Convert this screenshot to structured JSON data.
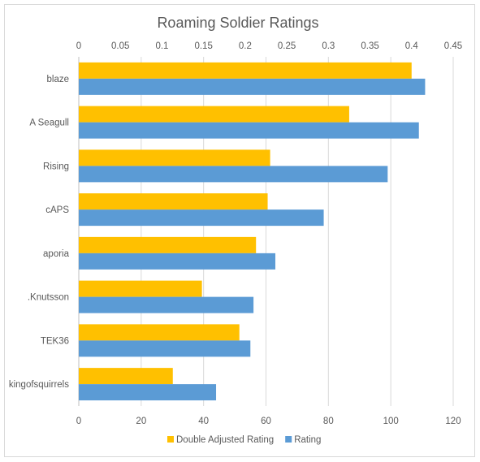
{
  "chart_data": {
    "type": "bar",
    "orientation": "horizontal",
    "title": "Roaming Soldier Ratings",
    "categories": [
      "blaze",
      "A Seagull",
      "Rising",
      "cAPS",
      "aporia",
      ".Knutsson",
      "TEK36",
      "kingofsquirrels"
    ],
    "series": [
      {
        "name": "Double Adjusted Rating",
        "axis": "top",
        "color": "#FFC000",
        "values": [
          0.4,
          0.325,
          0.23,
          0.227,
          0.213,
          0.148,
          0.193,
          0.113
        ]
      },
      {
        "name": "Rating",
        "axis": "bottom",
        "color": "#5B9BD5",
        "values": [
          111,
          109,
          99,
          78.5,
          63,
          56,
          55,
          44
        ]
      }
    ],
    "top_axis": {
      "range": [
        0,
        0.45
      ],
      "ticks": [
        "0",
        "0.05",
        "0.1",
        "0.15",
        "0.2",
        "0.25",
        "0.3",
        "0.35",
        "0.4",
        "0.45"
      ]
    },
    "bottom_axis": {
      "range": [
        0,
        120
      ],
      "ticks": [
        "0",
        "20",
        "40",
        "60",
        "80",
        "100",
        "120"
      ]
    },
    "grid": true,
    "legend_position": "bottom"
  }
}
